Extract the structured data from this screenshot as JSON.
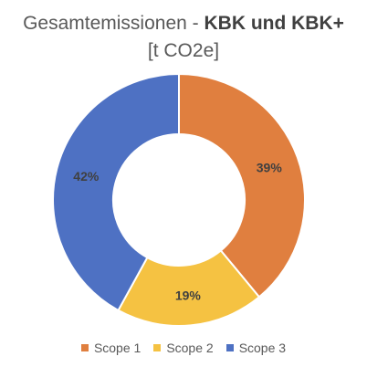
{
  "chart_data": {
    "type": "pie",
    "title_prefix": "Gesamtemissionen - ",
    "title_bold": "KBK und KBK+",
    "subtitle": "[t CO2e]",
    "categories": [
      "Scope 1",
      "Scope 2",
      "Scope 3"
    ],
    "values": [
      39,
      19,
      42
    ],
    "labels": [
      "39%",
      "19%",
      "42%"
    ],
    "colors": [
      "#E07F3F",
      "#F5C242",
      "#4E71C3"
    ],
    "donut": true,
    "legend_position": "bottom"
  }
}
